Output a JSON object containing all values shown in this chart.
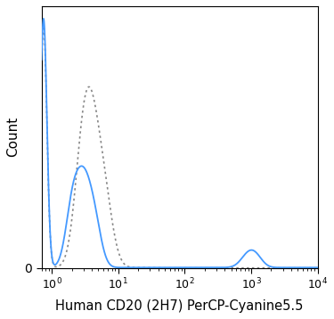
{
  "title": "",
  "xlabel": "Human CD20 (2H7) PerCP-Cyanine5.5",
  "ylabel": "Count",
  "xlim_log": [
    0.7,
    10000
  ],
  "ylim": [
    0,
    1.05
  ],
  "solid_color": "#4499ff",
  "dashed_color": "#888888",
  "background_color": "#ffffff",
  "figsize": [
    3.75,
    3.58
  ],
  "dpi": 100
}
